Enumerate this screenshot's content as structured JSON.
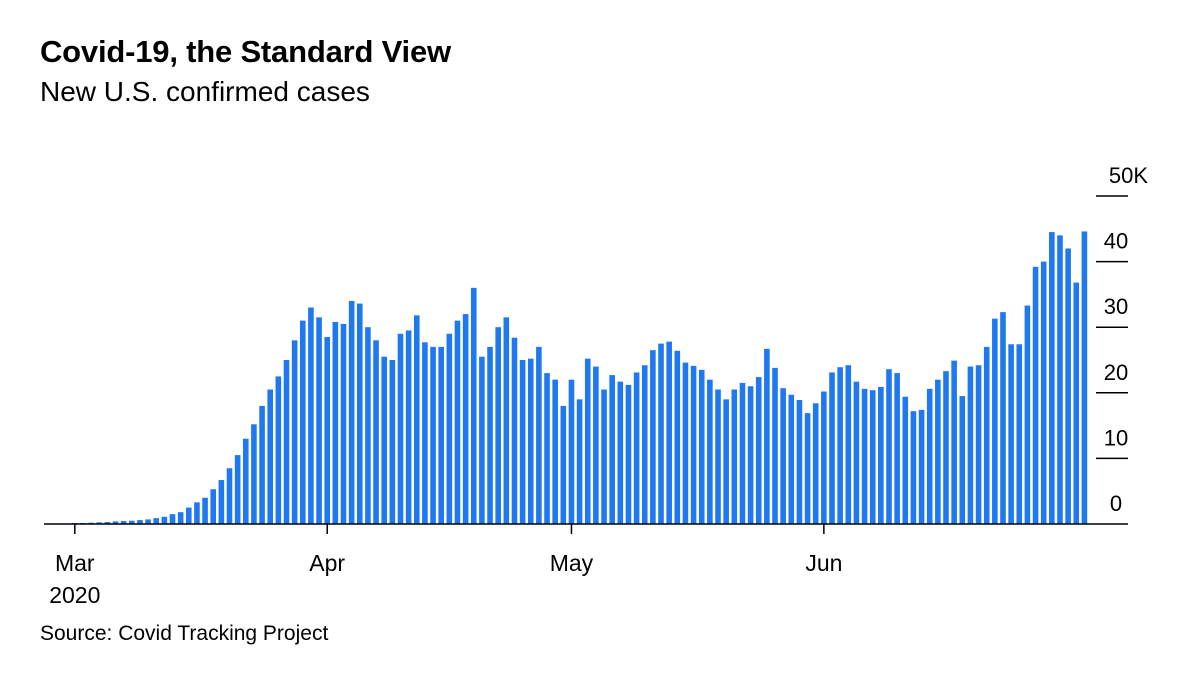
{
  "title": "Covid-19, the Standard View",
  "subtitle": "New U.S. confirmed cases",
  "source": "Source: Covid Tracking Project",
  "chart_data": {
    "type": "bar",
    "title": "Covid-19, the Standard View",
    "subtitle": "New U.S. confirmed cases",
    "x_start_date": "2020-03-01",
    "x_tick_labels": [
      "Mar",
      "Apr",
      "May",
      "Jun"
    ],
    "x_year_label": "2020",
    "y_tick_labels": [
      "0",
      "10",
      "20",
      "30",
      "40",
      "50K"
    ],
    "ylim": [
      0,
      50000
    ],
    "y_axis_side": "right",
    "bar_color": "#1f78f0",
    "values": [
      100,
      150,
      200,
      250,
      300,
      400,
      450,
      500,
      600,
      700,
      900,
      1100,
      1500,
      1800,
      2500,
      3300,
      4000,
      5300,
      6700,
      8500,
      10500,
      13000,
      15200,
      18000,
      20500,
      22500,
      25000,
      28000,
      31000,
      33000,
      31500,
      28500,
      30800,
      30500,
      34000,
      33600,
      30000,
      28000,
      25500,
      25000,
      29000,
      29500,
      31800,
      27700,
      27000,
      27000,
      29000,
      31000,
      32000,
      36000,
      25500,
      27000,
      30000,
      31500,
      28400,
      25000,
      25200,
      27000,
      23000,
      22000,
      18000,
      22000,
      19000,
      25200,
      24000,
      20500,
      22700,
      21700,
      21200,
      23100,
      24200,
      26500,
      27500,
      27800,
      26400,
      24600,
      24100,
      23500,
      22000,
      20500,
      19000,
      20500,
      21500,
      21000,
      22400,
      26700,
      23800,
      20700,
      19700,
      18900,
      16900,
      18400,
      20200,
      23100,
      23900,
      24200,
      21700,
      20600,
      20400,
      20900,
      23600,
      23000,
      19400,
      17200,
      17400,
      20600,
      22000,
      23300,
      24900,
      19500,
      24000,
      24200,
      27000,
      31300,
      32300,
      27400,
      27400,
      33300,
      39200,
      40000,
      44500,
      44000,
      42000,
      36800,
      44600
    ]
  }
}
